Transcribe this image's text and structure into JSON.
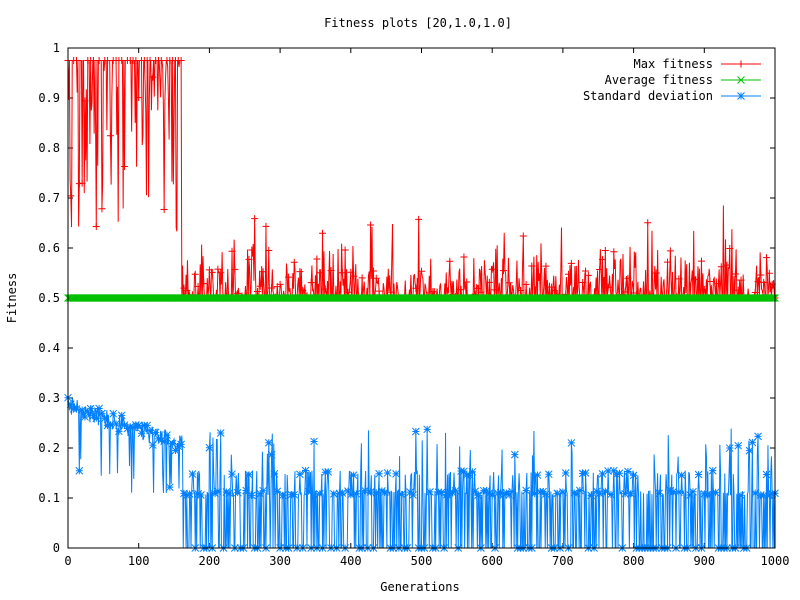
{
  "chart_data": {
    "type": "line",
    "title": "Fitness plots [20,1.0,1.0]",
    "xlabel": "Generations",
    "ylabel": "Fitness",
    "xlim": [
      0,
      1000
    ],
    "ylim": [
      0,
      1
    ],
    "x_ticks": [
      "0",
      "100",
      "200",
      "300",
      "400",
      "500",
      "600",
      "700",
      "800",
      "900",
      "1000"
    ],
    "y_ticks": [
      "0",
      "0.1",
      "0.2",
      "0.3",
      "0.4",
      "0.5",
      "0.6",
      "0.7",
      "0.8",
      "0.9",
      "1"
    ],
    "grid": false,
    "legend_position": "top-right",
    "series": [
      {
        "name": "Max fitness",
        "color": "#ff0000",
        "marker": "plus",
        "description": "About 0.975 with dips to 0.63 up to generation 160, then 0.5 with spikes up to about 0.66 (peak 0.685 near generation 927)."
      },
      {
        "name": "Average fitness",
        "color": "#00c000",
        "marker": "cross",
        "constant_value": 0.5
      },
      {
        "name": "Standard deviation",
        "color": "#0080ff",
        "marker": "star",
        "description": "About 0.28 in the early generations, decreasing to about 0.15–0.25 by generation 160, then oscillating between 0 and 0.11 with spikes up to about 0.24."
      }
    ]
  }
}
